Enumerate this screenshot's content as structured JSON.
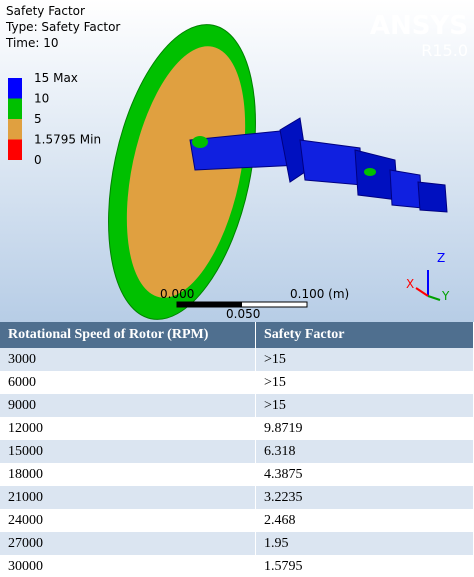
{
  "viewport": {
    "legend": {
      "title": "Safety Factor",
      "type": "Type: Safety Factor",
      "time": "Time: 10",
      "labels": [
        "15 Max",
        "10",
        "5",
        "1.5795 Min",
        "0"
      ],
      "colors": [
        "#0000ff",
        "#00c000",
        "#e0a040",
        "#ff0000"
      ]
    },
    "logo": {
      "name": "ANSYS",
      "version": "R15.0"
    },
    "scale": {
      "left": "0.000",
      "right": "0.100 (m)",
      "middle": "0.050"
    },
    "axes": {
      "z": "Z",
      "x": "X",
      "y": "Y"
    }
  },
  "table": {
    "header": [
      "Rotational Speed of Rotor (RPM)",
      "Safety Factor"
    ],
    "rows": [
      [
        "3000",
        ">15"
      ],
      [
        "6000",
        ">15"
      ],
      [
        "9000",
        ">15"
      ],
      [
        "12000",
        "9.8719"
      ],
      [
        "15000",
        "6.318"
      ],
      [
        "18000",
        "4.3875"
      ],
      [
        "21000",
        "3.2235"
      ],
      [
        "24000",
        "2.468"
      ],
      [
        "27000",
        "1.95"
      ],
      [
        "30000",
        "1.5795"
      ]
    ]
  }
}
